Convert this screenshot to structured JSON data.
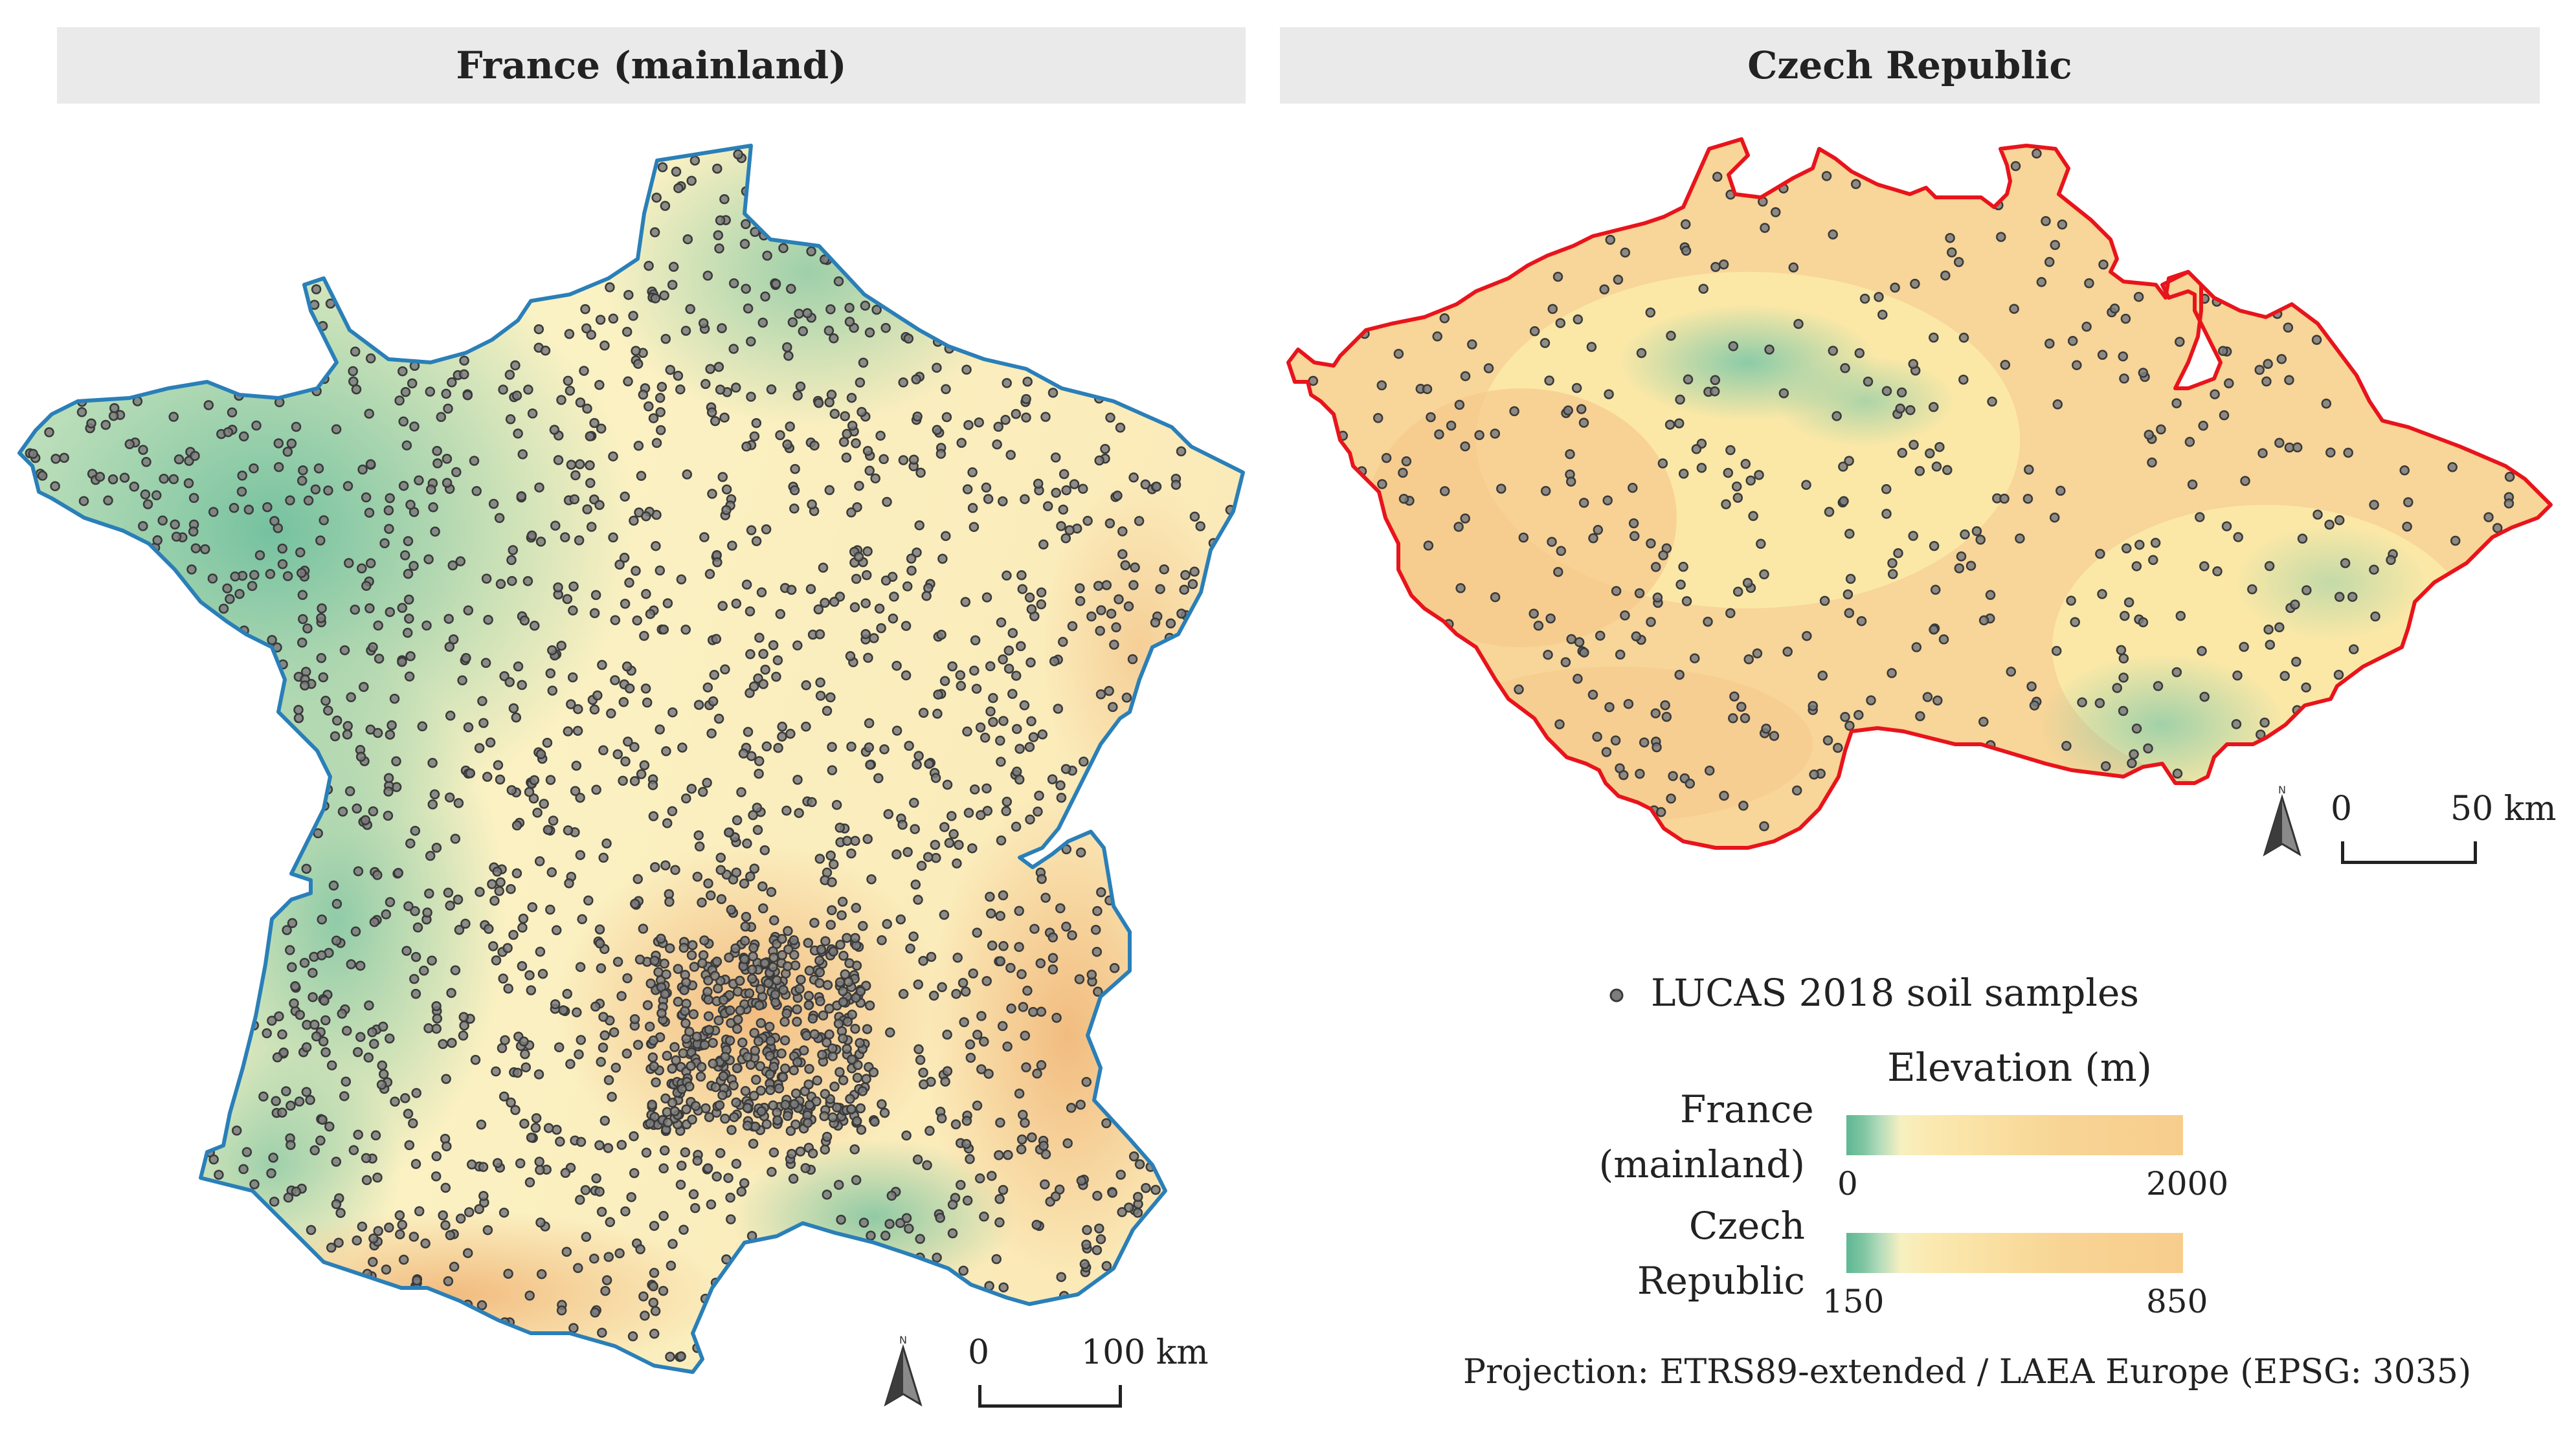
{
  "panels": {
    "france": {
      "title": "France (mainland)",
      "scale_zero": "0",
      "scale_label": "100 km",
      "north_label": "N"
    },
    "czech": {
      "title": "Czech Republic",
      "scale_zero": "0",
      "scale_label": "50 km",
      "north_label": "N"
    }
  },
  "legend": {
    "samples_label": "LUCAS 2018 soil samples",
    "elevation_title": "Elevation (m)",
    "france_label_line1": "France",
    "france_label_line2": "(mainland)",
    "france_min": "0",
    "france_max": "2000",
    "czech_label_line1": "Czech",
    "czech_label_line2": "Republic",
    "czech_min": "150",
    "czech_max": "850",
    "projection": "Projection: ETRS89-extended / LAEA Europe (EPSG: 3035)"
  },
  "colors": {
    "france_border": "#2a7fb8",
    "czech_border": "#e8141c",
    "sample_fill": "#7d7d7d",
    "sample_stroke": "#3a3a3a",
    "lowland": "#6cbf9c",
    "plain": "#fbf2c2",
    "upland": "#f6c98a"
  }
}
